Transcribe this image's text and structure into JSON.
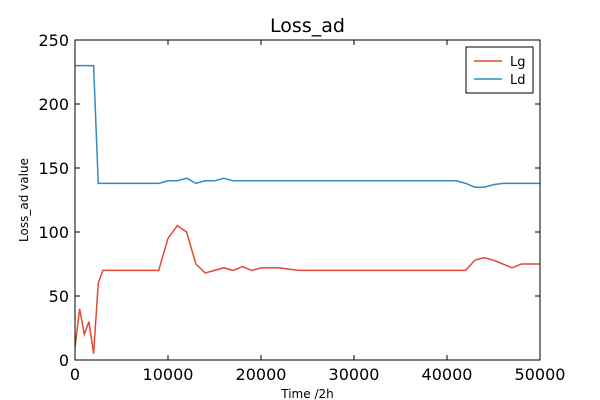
{
  "chart_data": {
    "type": "line",
    "title": "Loss_ad",
    "xlabel": "Time /2h",
    "ylabel": "Loss_ad value",
    "xlim": [
      0,
      50000
    ],
    "ylim": [
      0,
      250
    ],
    "xticks": [
      "0",
      "10000",
      "20000",
      "30000",
      "40000",
      "50000"
    ],
    "yticks": [
      "0",
      "50",
      "100",
      "150",
      "200",
      "250"
    ],
    "grid": false,
    "legend_position": "top-right",
    "series": [
      {
        "name": "Lg",
        "color": "#e24a33",
        "x": [
          0,
          500,
          1000,
          1500,
          2000,
          2500,
          3000,
          4000,
          5000,
          6000,
          7000,
          8000,
          9000,
          10000,
          11000,
          12000,
          13000,
          14000,
          15000,
          16000,
          17000,
          18000,
          19000,
          20000,
          22000,
          24000,
          26000,
          28000,
          30000,
          32000,
          34000,
          36000,
          38000,
          40000,
          41000,
          42000,
          43000,
          44000,
          45000,
          46000,
          47000,
          48000,
          49000,
          50000
        ],
        "values": [
          10,
          40,
          20,
          30,
          5,
          60,
          70,
          70,
          70,
          70,
          70,
          70,
          70,
          95,
          105,
          100,
          75,
          68,
          70,
          72,
          70,
          73,
          70,
          72,
          72,
          70,
          70,
          70,
          70,
          70,
          70,
          70,
          70,
          70,
          70,
          70,
          78,
          80,
          78,
          75,
          72,
          75,
          75,
          75
        ]
      },
      {
        "name": "Ld",
        "color": "#348abd",
        "x": [
          0,
          500,
          1000,
          1500,
          2000,
          2500,
          3000,
          4000,
          5000,
          6000,
          7000,
          8000,
          9000,
          10000,
          11000,
          12000,
          13000,
          14000,
          15000,
          16000,
          17000,
          18000,
          19000,
          20000,
          22000,
          24000,
          26000,
          28000,
          30000,
          32000,
          34000,
          36000,
          38000,
          40000,
          41000,
          42000,
          43000,
          44000,
          45000,
          46000,
          47000,
          48000,
          49000,
          50000
        ],
        "values": [
          230,
          230,
          230,
          230,
          230,
          138,
          138,
          138,
          138,
          138,
          138,
          138,
          138,
          140,
          140,
          142,
          138,
          140,
          140,
          142,
          140,
          140,
          140,
          140,
          140,
          140,
          140,
          140,
          140,
          140,
          140,
          140,
          140,
          140,
          140,
          138,
          135,
          135,
          137,
          138,
          138,
          138,
          138,
          138
        ]
      }
    ]
  }
}
